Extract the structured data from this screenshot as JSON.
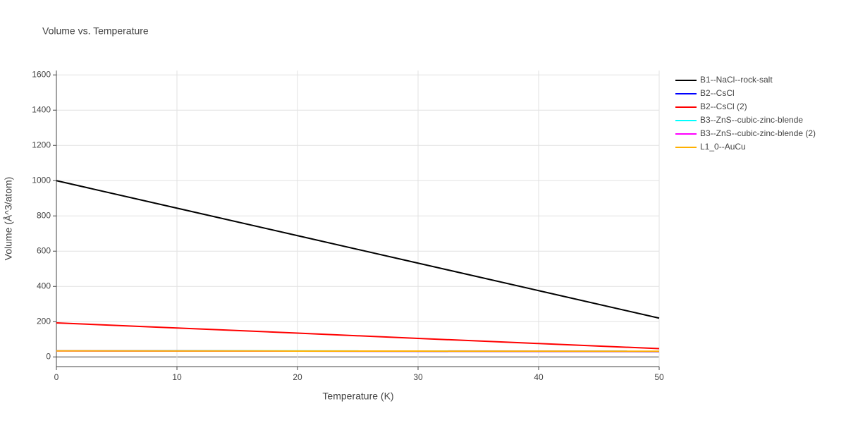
{
  "chart_data": {
    "type": "line",
    "title": "Volume vs. Temperature",
    "x_label": "Temperature (K)",
    "y_label": "Volume (Å^3/atom)",
    "x": [
      0,
      10,
      20,
      30,
      40,
      50
    ],
    "series": [
      {
        "name": "B1--NaCl--rock-salt",
        "color": "#000000",
        "values": [
          1000,
          844,
          688,
          532,
          376,
          220
        ]
      },
      {
        "name": "B2--CsCl",
        "color": "#0000ff",
        "values": [
          35,
          34,
          33,
          32,
          31,
          30
        ]
      },
      {
        "name": "B2--CsCl (2)",
        "color": "#ff0000",
        "values": [
          193,
          164,
          135,
          105,
          76,
          47
        ]
      },
      {
        "name": "B3--ZnS--cubic-zinc-blende",
        "color": "#00ffff",
        "values": [
          35,
          34.5,
          34,
          33.5,
          33,
          32.5
        ]
      },
      {
        "name": "B3--ZnS--cubic-zinc-blende (2)",
        "color": "#ff00ff",
        "values": [
          34,
          33.5,
          33,
          32.5,
          32,
          31.5
        ]
      },
      {
        "name": "L1_0--AuCu",
        "color": "#ffb000",
        "values": [
          34,
          33.6,
          33.2,
          32.8,
          32.4,
          32
        ]
      }
    ],
    "xlim": [
      0,
      50
    ],
    "xticks": [
      0,
      10,
      20,
      30,
      40,
      50
    ],
    "ylim": [
      -55,
      1625
    ],
    "yticks": [
      0,
      200,
      400,
      600,
      800,
      1000,
      1200,
      1400,
      1600
    ],
    "grid": true,
    "legend": "right"
  }
}
